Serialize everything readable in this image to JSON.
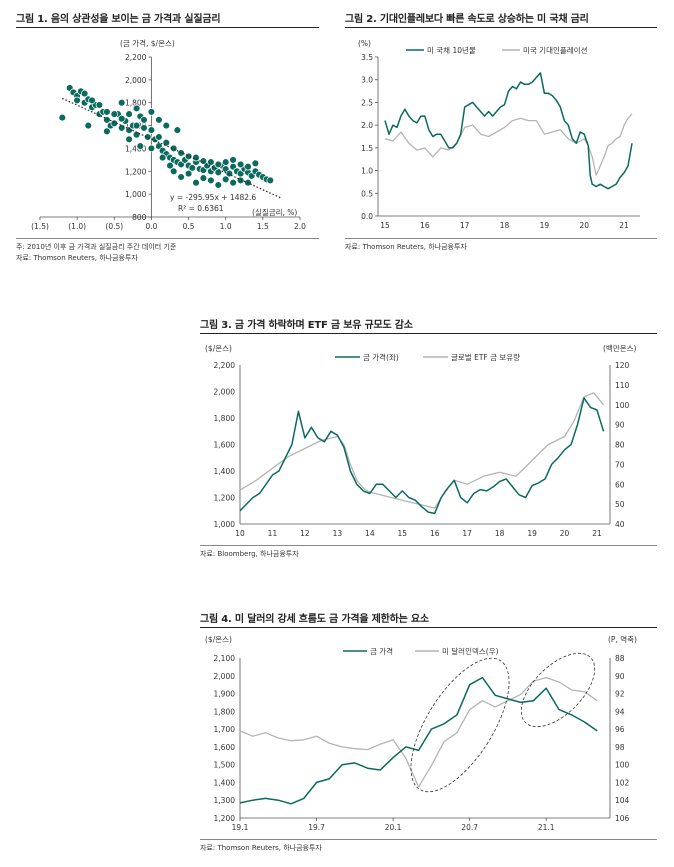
{
  "colors": {
    "gold": "#0b6a5e",
    "gray": "#b4b4b4",
    "axis": "#555555"
  },
  "chart_data": [
    {
      "type": "scatter",
      "title": "그림 1. 음의 상관성을 보이는 금 가격과 실질금리",
      "ylabel": "(금 가격, $/온스)",
      "xlabel": "(실질금리, %)",
      "xlim": [
        -1.5,
        2.0
      ],
      "ylim": [
        800,
        2200
      ],
      "x_ticks": [
        -1.5,
        -1.0,
        -0.5,
        0.0,
        0.5,
        1.0,
        1.5,
        2.0
      ],
      "x_tick_labels": [
        "(1.5)",
        "(1.0)",
        "(0.5)",
        "0.0",
        "0.5",
        "1.0",
        "1.5",
        "2.0"
      ],
      "y_ticks": [
        800,
        1000,
        1200,
        1400,
        1600,
        1800,
        2000,
        2200
      ],
      "y_tick_labels": [
        "800",
        "1,000",
        "1,200",
        "1,400",
        "1,600",
        "1,800",
        "2,000",
        "2,200"
      ],
      "regression": {
        "slope": -295.95,
        "intercept": 1482.6,
        "r2": 0.6361
      },
      "equation_label": "y = -295.95x + 1482.6",
      "r2_label": "R² = 0.6361",
      "note1": "주: 2010년 이후 금 가격과 실질금리 주간 데이터 기준",
      "source": "자료: Thomson Reuters, 하나금융투자",
      "points": [
        [
          -1.1,
          1930
        ],
        [
          -1.05,
          1890
        ],
        [
          -1.0,
          1860
        ],
        [
          -0.95,
          1900
        ],
        [
          -0.9,
          1800
        ],
        [
          -0.85,
          1830
        ],
        [
          -0.8,
          1760
        ],
        [
          -0.75,
          1780
        ],
        [
          -0.7,
          1700
        ],
        [
          -0.65,
          1720
        ],
        [
          -0.6,
          1650
        ],
        [
          -0.55,
          1600
        ],
        [
          -0.5,
          1620
        ],
        [
          -0.45,
          1700
        ],
        [
          -0.4,
          1580
        ],
        [
          -0.35,
          1640
        ],
        [
          -0.3,
          1560
        ],
        [
          -0.25,
          1600
        ],
        [
          -0.2,
          1520
        ],
        [
          -0.15,
          1680
        ],
        [
          -0.1,
          1580
        ],
        [
          -0.05,
          1500
        ],
        [
          0.0,
          1560
        ],
        [
          0.05,
          1480
        ],
        [
          0.1,
          1420
        ],
        [
          0.15,
          1380
        ],
        [
          0.2,
          1350
        ],
        [
          0.25,
          1320
        ],
        [
          0.3,
          1300
        ],
        [
          0.35,
          1280
        ],
        [
          0.4,
          1260
        ],
        [
          0.45,
          1300
        ],
        [
          0.5,
          1250
        ],
        [
          0.55,
          1230
        ],
        [
          0.6,
          1280
        ],
        [
          0.65,
          1220
        ],
        [
          0.7,
          1210
        ],
        [
          0.75,
          1250
        ],
        [
          0.8,
          1200
        ],
        [
          0.85,
          1230
        ],
        [
          0.9,
          1190
        ],
        [
          0.95,
          1250
        ],
        [
          1.0,
          1220
        ],
        [
          1.05,
          1180
        ],
        [
          1.1,
          1240
        ],
        [
          1.15,
          1200
        ],
        [
          1.2,
          1180
        ],
        [
          1.25,
          1220
        ],
        [
          1.3,
          1190
        ],
        [
          1.35,
          1160
        ],
        [
          1.4,
          1200
        ],
        [
          1.45,
          1170
        ],
        [
          1.5,
          1150
        ],
        [
          1.55,
          1130
        ],
        [
          1.6,
          1120
        ],
        [
          -1.0,
          1820
        ],
        [
          -0.9,
          1880
        ],
        [
          -0.8,
          1820
        ],
        [
          -0.7,
          1780
        ],
        [
          -0.6,
          1720
        ],
        [
          -0.5,
          1700
        ],
        [
          -0.4,
          1660
        ],
        [
          -0.3,
          1700
        ],
        [
          -0.2,
          1600
        ],
        [
          -0.1,
          1650
        ],
        [
          0.1,
          1500
        ],
        [
          0.2,
          1450
        ],
        [
          0.3,
          1400
        ],
        [
          0.4,
          1360
        ],
        [
          0.5,
          1330
        ],
        [
          0.6,
          1320
        ],
        [
          0.7,
          1290
        ],
        [
          0.8,
          1280
        ],
        [
          0.9,
          1260
        ],
        [
          1.0,
          1280
        ],
        [
          1.1,
          1300
        ],
        [
          1.2,
          1260
        ],
        [
          1.3,
          1240
        ],
        [
          1.4,
          1270
        ],
        [
          0.3,
          1200
        ],
        [
          0.4,
          1150
        ],
        [
          0.5,
          1180
        ],
        [
          0.6,
          1100
        ],
        [
          0.7,
          1140
        ],
        [
          0.8,
          1120
        ],
        [
          0.9,
          1080
        ],
        [
          1.0,
          1130
        ],
        [
          1.1,
          1100
        ],
        [
          1.2,
          1120
        ],
        [
          1.3,
          1100
        ],
        [
          -1.2,
          1670
        ],
        [
          -0.85,
          1600
        ],
        [
          -0.6,
          1550
        ],
        [
          -0.3,
          1480
        ],
        [
          -0.15,
          1420
        ],
        [
          0.0,
          1400
        ],
        [
          0.15,
          1320
        ],
        [
          0.25,
          1250
        ],
        [
          -0.4,
          1800
        ],
        [
          -0.2,
          1750
        ],
        [
          0.0,
          1720
        ],
        [
          0.1,
          1650
        ],
        [
          0.2,
          1600
        ],
        [
          0.35,
          1560
        ]
      ]
    },
    {
      "type": "line",
      "title": "그림 2. 기대인플레보다 빠른 속도로 상승하는 미 국채 금리",
      "ylabel": "(%)",
      "x_ticks": [
        15,
        16,
        17,
        18,
        19,
        20,
        21
      ],
      "x_tick_labels": [
        "15",
        "16",
        "17",
        "18",
        "19",
        "20",
        "21"
      ],
      "xlim": [
        15,
        21.4
      ],
      "ylim": [
        0,
        3.5
      ],
      "y_ticks": [
        0,
        0.5,
        1.0,
        1.5,
        2.0,
        2.5,
        3.0,
        3.5
      ],
      "y_tick_labels": [
        "0.0",
        "0.5",
        "1.0",
        "1.5",
        "2.0",
        "2.5",
        "3.0",
        "3.5"
      ],
      "source": "자료: Thomson Reuters, 하나금융투자",
      "series": [
        {
          "name": "미 국채 10년물",
          "color": "gold",
          "x": [
            15.0,
            15.1,
            15.2,
            15.3,
            15.4,
            15.5,
            15.6,
            15.7,
            15.8,
            15.9,
            16.0,
            16.1,
            16.2,
            16.3,
            16.4,
            16.5,
            16.6,
            16.7,
            16.8,
            16.9,
            17.0,
            17.1,
            17.2,
            17.3,
            17.4,
            17.5,
            17.6,
            17.7,
            17.8,
            17.9,
            18.0,
            18.1,
            18.2,
            18.3,
            18.4,
            18.5,
            18.6,
            18.7,
            18.8,
            18.9,
            19.0,
            19.1,
            19.2,
            19.3,
            19.4,
            19.5,
            19.6,
            19.7,
            19.8,
            19.9,
            20.0,
            20.1,
            20.15,
            20.2,
            20.3,
            20.4,
            20.5,
            20.6,
            20.7,
            20.8,
            20.9,
            21.0,
            21.1,
            21.2
          ],
          "y": [
            2.1,
            1.8,
            2.0,
            1.95,
            2.2,
            2.35,
            2.2,
            2.1,
            2.05,
            2.2,
            2.2,
            1.9,
            1.75,
            1.8,
            1.8,
            1.65,
            1.5,
            1.5,
            1.6,
            1.8,
            2.4,
            2.45,
            2.5,
            2.4,
            2.3,
            2.2,
            2.3,
            2.2,
            2.3,
            2.4,
            2.45,
            2.75,
            2.85,
            2.8,
            2.95,
            2.9,
            2.9,
            2.95,
            3.05,
            3.15,
            2.7,
            2.7,
            2.65,
            2.55,
            2.4,
            2.1,
            2.0,
            1.7,
            1.6,
            1.85,
            1.8,
            1.55,
            0.9,
            0.7,
            0.65,
            0.7,
            0.65,
            0.6,
            0.65,
            0.7,
            0.85,
            0.95,
            1.1,
            1.6
          ]
        },
        {
          "name": "미국 기대인플레이션",
          "color": "gray",
          "x": [
            15.0,
            15.2,
            15.4,
            15.6,
            15.8,
            16.0,
            16.2,
            16.4,
            16.6,
            16.8,
            17.0,
            17.2,
            17.4,
            17.6,
            17.8,
            18.0,
            18.2,
            18.4,
            18.6,
            18.8,
            19.0,
            19.2,
            19.4,
            19.6,
            19.8,
            20.0,
            20.1,
            20.2,
            20.3,
            20.4,
            20.5,
            20.6,
            20.7,
            20.8,
            20.9,
            21.0,
            21.1,
            21.2
          ],
          "y": [
            1.7,
            1.65,
            1.85,
            1.6,
            1.45,
            1.5,
            1.3,
            1.5,
            1.45,
            1.6,
            1.95,
            2.0,
            1.8,
            1.75,
            1.85,
            1.95,
            2.1,
            2.15,
            2.1,
            2.1,
            1.8,
            1.85,
            1.9,
            1.7,
            1.6,
            1.7,
            1.55,
            1.3,
            0.9,
            1.1,
            1.3,
            1.55,
            1.6,
            1.7,
            1.75,
            2.0,
            2.15,
            2.25
          ]
        }
      ]
    },
    {
      "type": "line",
      "title": "그림 3. 금 가격 하락하며 ETF 금 보유 규모도 감소",
      "ylabel_left": "($/온스)",
      "ylabel_right": "(백만온스)",
      "x_ticks": [
        10,
        11,
        12,
        13,
        14,
        15,
        16,
        17,
        18,
        19,
        20,
        21
      ],
      "x_tick_labels": [
        "10",
        "11",
        "12",
        "13",
        "14",
        "15",
        "16",
        "17",
        "18",
        "19",
        "20",
        "21"
      ],
      "xlim": [
        10,
        21.4
      ],
      "ylim_left": [
        1000,
        2200
      ],
      "ylim_right": [
        40,
        120
      ],
      "y_ticks_left": [
        1000,
        1200,
        1400,
        1600,
        1800,
        2000,
        2200
      ],
      "y_tick_labels_left": [
        "1,000",
        "1,200",
        "1,400",
        "1,600",
        "1,800",
        "2,000",
        "2,200"
      ],
      "y_ticks_right": [
        40,
        50,
        60,
        70,
        80,
        90,
        100,
        110,
        120
      ],
      "y_tick_labels_right": [
        "40",
        "50",
        "60",
        "70",
        "80",
        "90",
        "100",
        "110",
        "120"
      ],
      "source": "자료: Bloomberg, 하나금융투자",
      "series": [
        {
          "name": "금 가격(좌)",
          "axis": "left",
          "color": "gold",
          "x": [
            10.0,
            10.2,
            10.4,
            10.6,
            10.8,
            11.0,
            11.2,
            11.4,
            11.6,
            11.8,
            12.0,
            12.2,
            12.4,
            12.6,
            12.8,
            13.0,
            13.2,
            13.4,
            13.6,
            13.8,
            14.0,
            14.2,
            14.4,
            14.6,
            14.8,
            15.0,
            15.2,
            15.4,
            15.6,
            15.8,
            16.0,
            16.2,
            16.4,
            16.6,
            16.8,
            17.0,
            17.2,
            17.4,
            17.6,
            17.8,
            18.0,
            18.2,
            18.4,
            18.6,
            18.8,
            19.0,
            19.2,
            19.4,
            19.6,
            19.8,
            20.0,
            20.2,
            20.4,
            20.6,
            20.8,
            21.0,
            21.2
          ],
          "y": [
            1100,
            1150,
            1200,
            1230,
            1300,
            1370,
            1400,
            1500,
            1600,
            1850,
            1650,
            1730,
            1650,
            1620,
            1700,
            1670,
            1580,
            1400,
            1300,
            1250,
            1230,
            1300,
            1300,
            1250,
            1200,
            1250,
            1200,
            1180,
            1130,
            1090,
            1080,
            1200,
            1270,
            1330,
            1200,
            1160,
            1230,
            1260,
            1250,
            1280,
            1320,
            1340,
            1280,
            1220,
            1200,
            1290,
            1310,
            1340,
            1450,
            1500,
            1560,
            1600,
            1750,
            1950,
            1880,
            1860,
            1700
          ]
        },
        {
          "name": "글로벌 ETF 금 보유량",
          "axis": "right",
          "color": "gray",
          "x": [
            10.0,
            10.5,
            11.0,
            11.5,
            12.0,
            12.5,
            13.0,
            13.2,
            13.4,
            13.6,
            13.8,
            14.0,
            14.5,
            15.0,
            15.5,
            16.0,
            16.3,
            16.6,
            17.0,
            17.5,
            18.0,
            18.5,
            19.0,
            19.5,
            20.0,
            20.3,
            20.6,
            20.9,
            21.0,
            21.2
          ],
          "y": [
            57,
            62,
            68,
            74,
            78,
            82,
            84,
            80,
            70,
            62,
            58,
            56,
            54,
            52,
            50,
            48,
            56,
            62,
            60,
            64,
            66,
            64,
            72,
            80,
            84,
            92,
            104,
            106,
            104,
            100
          ]
        }
      ]
    },
    {
      "type": "line",
      "title": "그림 4. 미 달러의 강세 흐름도 금 가격을 제한하는 요소",
      "ylabel_left": "($/온스)",
      "ylabel_right": "(P, 역축)",
      "x_ticks": [
        0,
        6,
        12,
        18,
        24
      ],
      "x_tick_labels": [
        "19.1",
        "19.7",
        "20.1",
        "20.7",
        "21.1"
      ],
      "xlim": [
        0,
        29
      ],
      "ylim_left": [
        1200,
        2100
      ],
      "ylim_right_inverted": [
        106,
        88
      ],
      "y_ticks_left": [
        1200,
        1300,
        1400,
        1500,
        1600,
        1700,
        1800,
        1900,
        2000,
        2100
      ],
      "y_tick_labels_left": [
        "1,200",
        "1,300",
        "1,400",
        "1,500",
        "1,600",
        "1,700",
        "1,800",
        "1,900",
        "2,000",
        "2,100"
      ],
      "y_ticks_right": [
        88,
        90,
        92,
        94,
        96,
        98,
        100,
        102,
        104,
        106
      ],
      "y_tick_labels_right": [
        "88",
        "90",
        "92",
        "94",
        "96",
        "98",
        "100",
        "102",
        "104",
        "106"
      ],
      "source": "자료: Thomson Reuters, 하나금융투자",
      "series": [
        {
          "name": "금 가격",
          "axis": "left",
          "color": "gold",
          "x": [
            0,
            1,
            2,
            3,
            4,
            5,
            6,
            7,
            8,
            9,
            10,
            11,
            12,
            13,
            14,
            15,
            16,
            17,
            18,
            19,
            20,
            21,
            22,
            23,
            24,
            25,
            26,
            27,
            28
          ],
          "y": [
            1285,
            1300,
            1310,
            1300,
            1280,
            1310,
            1400,
            1420,
            1500,
            1510,
            1480,
            1470,
            1540,
            1600,
            1580,
            1700,
            1730,
            1780,
            1950,
            1990,
            1890,
            1870,
            1850,
            1860,
            1930,
            1810,
            1780,
            1740,
            1690
          ]
        },
        {
          "name": "미 달러인덱스(우)",
          "axis": "right",
          "color": "gray",
          "x": [
            0,
            1,
            2,
            3,
            4,
            5,
            6,
            7,
            8,
            9,
            10,
            11,
            12,
            13,
            14,
            15,
            16,
            17,
            18,
            19,
            20,
            21,
            22,
            23,
            24,
            25,
            26,
            27,
            28
          ],
          "y": [
            96.2,
            96.8,
            96.4,
            97.0,
            97.3,
            97.2,
            96.8,
            97.6,
            98.0,
            98.2,
            98.3,
            97.7,
            97.2,
            99.3,
            102.5,
            100.1,
            97.4,
            96.4,
            93.8,
            92.8,
            93.5,
            92.8,
            92.1,
            90.6,
            90.2,
            90.7,
            91.6,
            91.8,
            92.8
          ]
        }
      ]
    }
  ]
}
